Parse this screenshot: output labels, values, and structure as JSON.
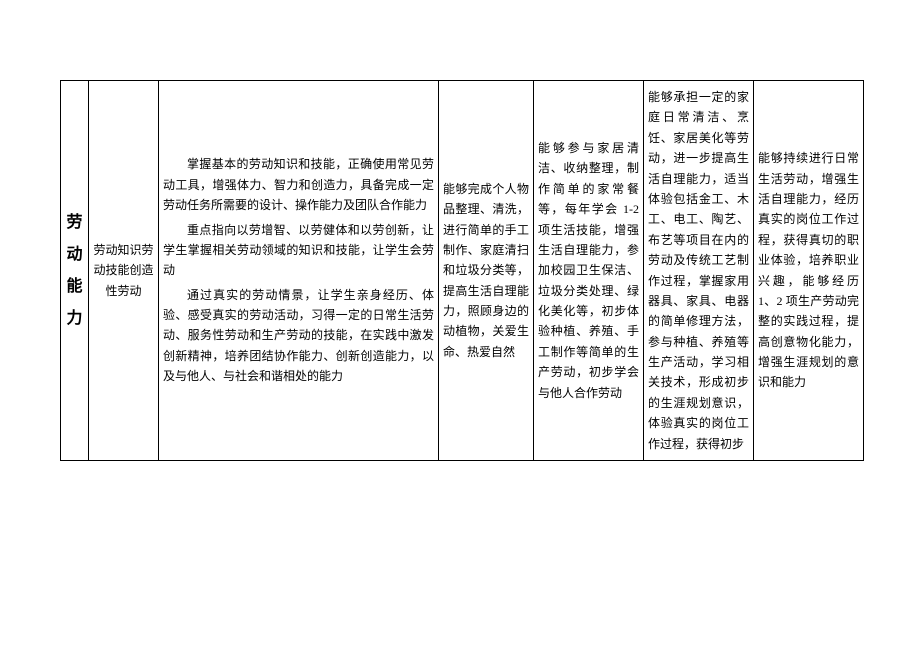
{
  "table": {
    "row": {
      "category": "劳动能力",
      "subcategory": "劳动知识劳动技能创造性劳动",
      "main_p1": "掌握基本的劳动知识和技能，正确使用常见劳动工具，增强体力、智力和创造力，具备完成一定劳动任务所需要的设计、操作能力及团队合作能力",
      "main_p2": "重点指向以劳增智、以劳健体和以劳创新，让学生掌握相关劳动领域的知识和技能，让学生会劳动",
      "main_p3": "通过真实的劳动情景，让学生亲身经历、体验、感受真实的劳动活动，习得一定的日常生活劳动、服务性劳动和生产劳动的技能，在实践中激发创新精神，培养团结协作能力、创新创造能力，以及与他人、与社会和谐相处的能力",
      "grade1": "能够完成个人物品整理、清洗，进行简单的手工制作、家庭清扫和垃圾分类等，提高生活自理能力，照顾身边的动植物，关爱生命、热爱自然",
      "grade2": "能够参与家居清洁、收纳整理，制作简单的家常餐等，每年学会 1-2 项生活技能，增强生活自理能力，参加校园卫生保洁、垃圾分类处理、绿化美化等，初步体验种植、养殖、手工制作等简单的生产劳动，初步学会与他人合作劳动",
      "grade3": "能够承担一定的家庭日常清洁、烹饪、家居美化等劳动，进一步提高生活自理能力，适当体验包括金工、木工、电工、陶艺、布艺等项目在内的劳动及传统工艺制作过程，掌握家用器具、家具、电器的简单修理方法，参与种植、养殖等生产活动，学习相关技术，形成初步的生涯规划意识，体验真实的岗位工作过程，获得初步",
      "grade4": "能够持续进行日常生活劳动，增强生活自理能力，经历真实的岗位工作过程，获得真切的职业体验，培养职业兴趣，能够经历 1、2 项生产劳动完整的实践过程，提高创意物化能力，增强生涯规划的意识和能力"
    }
  }
}
